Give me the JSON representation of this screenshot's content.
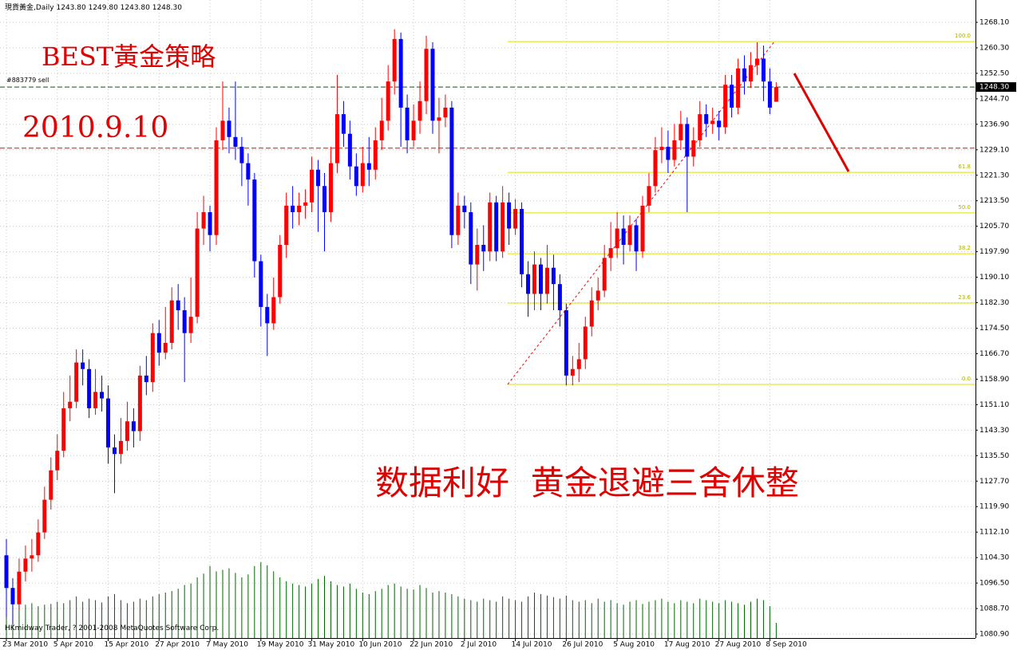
{
  "chart_data": {
    "type": "candlestick",
    "title": "現貨黃金,Daily  1243.80 1249.80 1243.80 1248.30",
    "watermark": "HKmidway Trader, ? 2001-2008 MetaQuotes Software Corp.",
    "annotations": [
      "BEST黃金策略",
      "2010.9.10",
      "数据利好  黄金退避三舍休整"
    ],
    "up_color": "#ff0000",
    "down_color": "#0000ff",
    "volume_color": "#006400",
    "grid": true,
    "ylim": [
      1080.9,
      1268.1
    ],
    "yticks": [
      {
        "value": 1268.1,
        "label": "1268.10"
      },
      {
        "value": 1260.3,
        "label": "1260.30"
      },
      {
        "value": 1252.5,
        "label": "1252.50"
      },
      {
        "value": 1244.7,
        "label": "1244.70"
      },
      {
        "value": 1236.9,
        "label": "1236.90"
      },
      {
        "value": 1229.1,
        "label": "1229.10"
      },
      {
        "value": 1221.3,
        "label": "1221.30"
      },
      {
        "value": 1213.5,
        "label": "1213.50"
      },
      {
        "value": 1205.7,
        "label": "1205.70"
      },
      {
        "value": 1197.9,
        "label": "1197.90"
      },
      {
        "value": 1190.1,
        "label": "1190.10"
      },
      {
        "value": 1182.3,
        "label": "1182.30"
      },
      {
        "value": 1174.5,
        "label": "1174.50"
      },
      {
        "value": 1166.7,
        "label": "1166.70"
      },
      {
        "value": 1158.9,
        "label": "1158.90"
      },
      {
        "value": 1151.1,
        "label": "1151.10"
      },
      {
        "value": 1143.3,
        "label": "1143.30"
      },
      {
        "value": 1135.5,
        "label": "1135.50"
      },
      {
        "value": 1127.7,
        "label": "1127.70"
      },
      {
        "value": 1119.9,
        "label": "1119.90"
      },
      {
        "value": 1112.1,
        "label": "1112.10"
      },
      {
        "value": 1104.3,
        "label": "1104.30"
      },
      {
        "value": 1096.5,
        "label": "1096.50"
      },
      {
        "value": 1088.7,
        "label": "1088.70"
      },
      {
        "value": 1080.9,
        "label": "1080.90"
      }
    ],
    "last_price": {
      "value": 1248.3,
      "label": "1248.30"
    },
    "order_line": {
      "label": "#883779 sell",
      "price": 1248.3,
      "color": "#006400"
    },
    "stop_line": {
      "price": 1229.6,
      "color": "#ff0000"
    },
    "fibonacci": {
      "color": "#e0e000",
      "levels": [
        {
          "label": "100.0",
          "price": 1262.2
        },
        {
          "label": "61.8",
          "price": 1222.2
        },
        {
          "label": "50.0",
          "price": 1209.8
        },
        {
          "label": "38.2",
          "price": 1197.3
        },
        {
          "label": "23.6",
          "price": 1182.2
        },
        {
          "label": "0.0",
          "price": 1157.3
        }
      ]
    },
    "categories": [
      "23 Mar 2010",
      null,
      null,
      null,
      null,
      null,
      null,
      null,
      "5 Apr 2010",
      null,
      null,
      null,
      null,
      null,
      null,
      null,
      "15 Apr 2010",
      null,
      null,
      null,
      null,
      null,
      null,
      null,
      "27 Apr 2010",
      null,
      null,
      null,
      null,
      null,
      null,
      null,
      "7 May 2010",
      null,
      null,
      null,
      null,
      null,
      null,
      null,
      "19 May 2010",
      null,
      null,
      null,
      null,
      null,
      null,
      null,
      "31 May 2010",
      null,
      null,
      null,
      null,
      null,
      null,
      null,
      "10 Jun 2010",
      null,
      null,
      null,
      null,
      null,
      null,
      null,
      "22 Jun 2010",
      null,
      null,
      null,
      null,
      null,
      null,
      null,
      "2 Jul 2010",
      null,
      null,
      null,
      null,
      null,
      null,
      null,
      "14 Jul 2010",
      null,
      null,
      null,
      null,
      null,
      null,
      null,
      "26 Jul 2010",
      null,
      null,
      null,
      null,
      null,
      null,
      null,
      "5 Aug 2010",
      null,
      null,
      null,
      null,
      null,
      null,
      null,
      "17 Aug 2010",
      null,
      null,
      null,
      null,
      null,
      null,
      null,
      "27 Aug 2010",
      null,
      null,
      null,
      null,
      null,
      null,
      null,
      "8 Sep 2010",
      null
    ],
    "open": [
      1105,
      1095,
      1090,
      1100,
      1104,
      1105,
      1112,
      1122,
      1131,
      1137,
      1150,
      1152,
      1164,
      1162,
      1150,
      1155,
      1153,
      1138,
      1136,
      1140,
      1146,
      1143,
      1160,
      1158,
      1173,
      1167,
      1170,
      1183,
      1180,
      1173,
      1178,
      1205,
      1210,
      1203,
      1232,
      1238,
      1233,
      1230,
      1225,
      1220,
      1195,
      1181,
      1176,
      1184,
      1200,
      1212,
      1210,
      1212,
      1213,
      1223,
      1218,
      1210,
      1225,
      1240,
      1234,
      1224,
      1218,
      1225,
      1223,
      1232,
      1238,
      1250,
      1263,
      1242,
      1232,
      1238,
      1244,
      1260,
      1238,
      1239,
      1242,
      1203,
      1212,
      1210,
      1194,
      1200,
      1198,
      1213,
      1198,
      1213,
      1205,
      1211,
      1191,
      1185,
      1194,
      1185,
      1193,
      1188,
      1180,
      1160,
      1162,
      1165,
      1175,
      1183,
      1186,
      1196,
      1199,
      1205,
      1200,
      1206,
      1198,
      1212,
      1218,
      1229,
      1230,
      1226,
      1232,
      1237,
      1227,
      1232,
      1240,
      1237,
      1238,
      1236,
      1249,
      1242,
      1254,
      1250,
      1255,
      1257,
      1250,
      1243.8
    ],
    "high": [
      1110,
      1098,
      1104,
      1108,
      1110,
      1116,
      1126,
      1135,
      1142,
      1155,
      1160,
      1168,
      1168,
      1165,
      1162,
      1160,
      1157,
      1142,
      1147,
      1152,
      1150,
      1163,
      1166,
      1176,
      1177,
      1181,
      1187,
      1188,
      1184,
      1190,
      1210,
      1215,
      1212,
      1236,
      1250,
      1242,
      1250,
      1233,
      1228,
      1222,
      1197,
      1185,
      1190,
      1203,
      1216,
      1218,
      1216,
      1217,
      1227,
      1226,
      1222,
      1230,
      1252,
      1244,
      1238,
      1228,
      1230,
      1233,
      1236,
      1245,
      1255,
      1266,
      1265,
      1246,
      1243,
      1250,
      1264,
      1262,
      1245,
      1246,
      1244,
      1216,
      1215,
      1213,
      1205,
      1206,
      1216,
      1215,
      1218,
      1216,
      1214,
      1213,
      1195,
      1198,
      1196,
      1200,
      1197,
      1191,
      1182,
      1166,
      1170,
      1178,
      1187,
      1190,
      1200,
      1207,
      1210,
      1209,
      1209,
      1208,
      1215,
      1222,
      1233,
      1236,
      1235,
      1237,
      1241,
      1239,
      1236,
      1244,
      1243,
      1242,
      1241,
      1252,
      1252,
      1257,
      1258,
      1259,
      1262,
      1261,
      1254,
      1249.8
    ],
    "low": [
      1086,
      1084,
      1088,
      1097,
      1100,
      1103,
      1110,
      1119,
      1128,
      1135,
      1146,
      1150,
      1157,
      1147,
      1148,
      1149,
      1133,
      1124,
      1133,
      1137,
      1138,
      1140,
      1154,
      1155,
      1163,
      1165,
      1168,
      1174,
      1158,
      1170,
      1176,
      1200,
      1198,
      1200,
      1229,
      1228,
      1226,
      1218,
      1212,
      1190,
      1175,
      1166,
      1174,
      1182,
      1196,
      1205,
      1206,
      1208,
      1210,
      1204,
      1198,
      1207,
      1222,
      1230,
      1220,
      1215,
      1216,
      1218,
      1220,
      1229,
      1235,
      1246,
      1230,
      1228,
      1230,
      1234,
      1240,
      1234,
      1228,
      1236,
      1199,
      1200,
      1205,
      1188,
      1186,
      1192,
      1195,
      1195,
      1196,
      1200,
      1203,
      1187,
      1178,
      1180,
      1180,
      1182,
      1180,
      1175,
      1157,
      1157,
      1158,
      1162,
      1172,
      1180,
      1184,
      1192,
      1196,
      1194,
      1198,
      1192,
      1196,
      1210,
      1216,
      1225,
      1222,
      1224,
      1229,
      1210,
      1224,
      1230,
      1233,
      1234,
      1232,
      1234,
      1239,
      1240,
      1246,
      1248,
      1252,
      1244,
      1240,
      1243.8
    ],
    "close": [
      1095,
      1090,
      1100,
      1104,
      1105,
      1112,
      1122,
      1131,
      1137,
      1150,
      1152,
      1164,
      1162,
      1150,
      1155,
      1153,
      1138,
      1136,
      1140,
      1146,
      1143,
      1160,
      1158,
      1173,
      1167,
      1170,
      1183,
      1180,
      1173,
      1178,
      1205,
      1210,
      1203,
      1232,
      1238,
      1233,
      1230,
      1225,
      1220,
      1195,
      1181,
      1176,
      1184,
      1200,
      1212,
      1210,
      1212,
      1213,
      1223,
      1218,
      1210,
      1225,
      1240,
      1234,
      1224,
      1218,
      1225,
      1223,
      1232,
      1238,
      1250,
      1263,
      1242,
      1232,
      1238,
      1244,
      1260,
      1238,
      1239,
      1242,
      1203,
      1212,
      1210,
      1194,
      1200,
      1198,
      1213,
      1198,
      1213,
      1205,
      1211,
      1191,
      1185,
      1194,
      1185,
      1193,
      1188,
      1180,
      1160,
      1162,
      1165,
      1175,
      1183,
      1186,
      1196,
      1199,
      1205,
      1200,
      1206,
      1198,
      1212,
      1218,
      1229,
      1230,
      1226,
      1232,
      1237,
      1227,
      1232,
      1240,
      1237,
      1238,
      1236,
      1249,
      1242,
      1254,
      1250,
      1255,
      1257,
      1250,
      1242,
      1248.3
    ],
    "volume": [
      50,
      45,
      48,
      44,
      46,
      42,
      44,
      45,
      48,
      46,
      50,
      55,
      48,
      52,
      50,
      47,
      55,
      58,
      50,
      46,
      48,
      52,
      50,
      55,
      58,
      60,
      62,
      65,
      70,
      72,
      80,
      85,
      95,
      88,
      90,
      92,
      86,
      80,
      84,
      95,
      100,
      96,
      88,
      80,
      75,
      72,
      70,
      68,
      72,
      78,
      82,
      75,
      70,
      68,
      72,
      65,
      60,
      58,
      62,
      65,
      70,
      72,
      68,
      65,
      64,
      70,
      66,
      60,
      62,
      60,
      58,
      55,
      52,
      50,
      48,
      52,
      50,
      48,
      55,
      52,
      50,
      48,
      55,
      60,
      58,
      56,
      54,
      52,
      56,
      50,
      48,
      50,
      46,
      52,
      48,
      50,
      46,
      44,
      48,
      50,
      45,
      48,
      50,
      52,
      48,
      46,
      50,
      48,
      46,
      52,
      50,
      48,
      46,
      50,
      48,
      46,
      44,
      48,
      52,
      50,
      42,
      20
    ]
  }
}
